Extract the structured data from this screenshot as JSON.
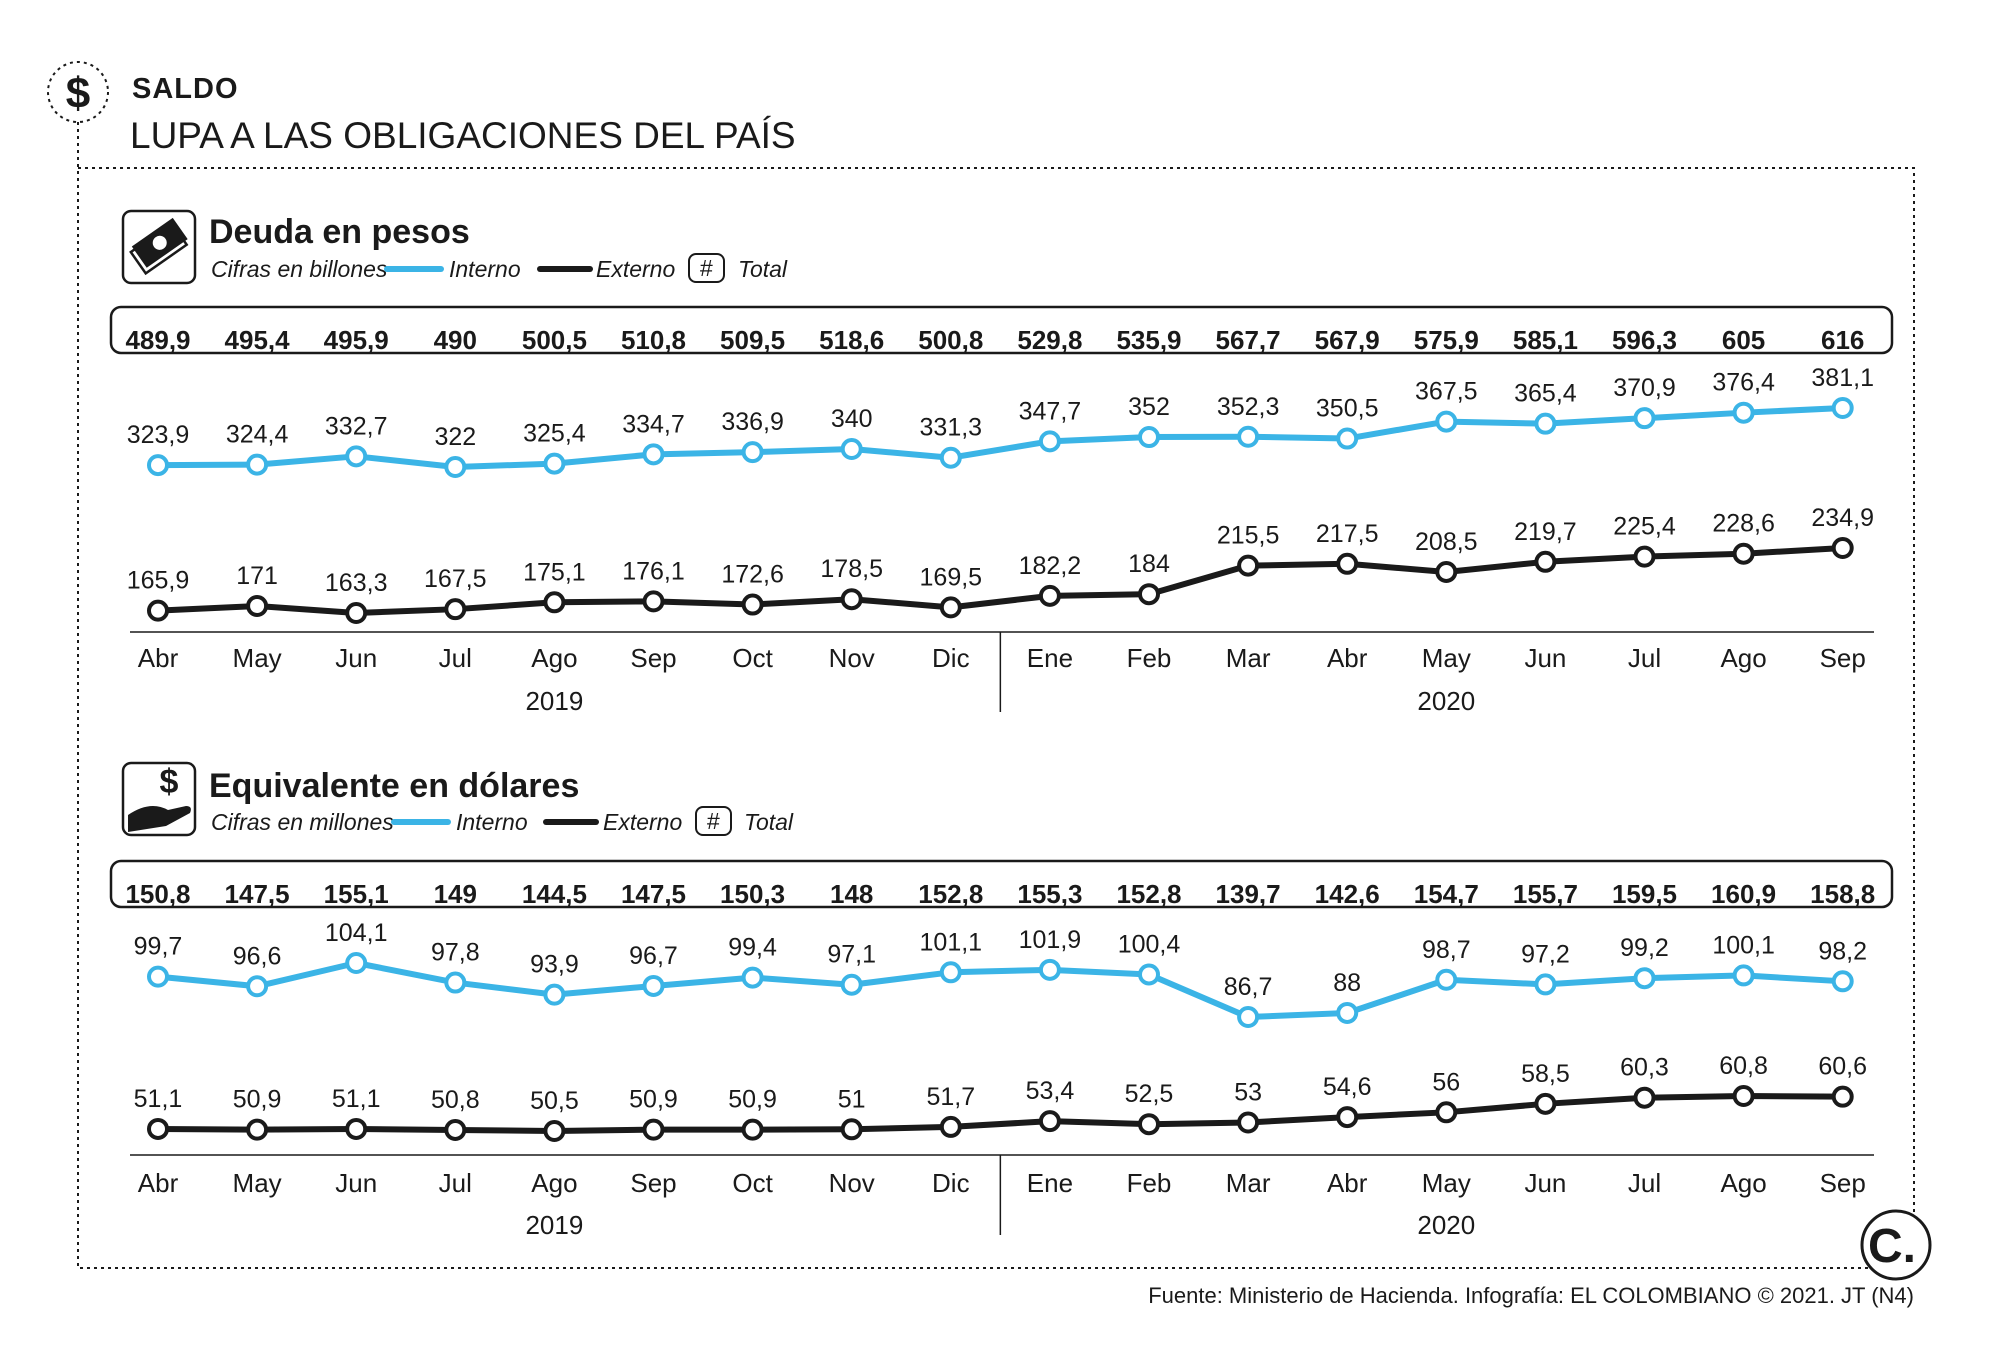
{
  "header": {
    "kicker": "SALDO",
    "subtitle": "LUPA A LAS OBLIGACIONES DEL PAÍS"
  },
  "source": "Fuente: Ministerio de Hacienda. Infografía: EL COLOMBIANO © 2021. JT (N4)",
  "logo_text": "C.",
  "colors": {
    "interno": "#3bb4e6",
    "externo": "#1a1a1a",
    "background": "#ffffff"
  },
  "icons": [
    "dollar-circle-icon",
    "banknotes-icon",
    "hand-dollar-icon",
    "el-colombiano-logo"
  ],
  "legend": {
    "interno": "Interno",
    "externo": "Externo",
    "total_symbol": "#",
    "total": "Total"
  },
  "chart_data": [
    {
      "type": "line",
      "title": "Deuda en pesos",
      "units": "Cifras en billones",
      "categories": [
        "Abr",
        "May",
        "Jun",
        "Jul",
        "Ago",
        "Sep",
        "Oct",
        "Nov",
        "Dic",
        "Ene",
        "Feb",
        "Mar",
        "Abr",
        "May",
        "Jun",
        "Jul",
        "Ago",
        "Sep"
      ],
      "years": [
        {
          "label": "2019",
          "from": 0,
          "to": 8
        },
        {
          "label": "2020",
          "from": 9,
          "to": 17
        }
      ],
      "totals": [
        "489,9",
        "495,4",
        "495,9",
        "490",
        "500,5",
        "510,8",
        "509,5",
        "518,6",
        "500,8",
        "529,8",
        "535,9",
        "567,7",
        "567,9",
        "575,9",
        "585,1",
        "596,3",
        "605",
        "616"
      ],
      "series": [
        {
          "name": "Interno",
          "values": [
            323.9,
            324.4,
            332.7,
            322,
            325.4,
            334.7,
            336.9,
            340,
            331.3,
            347.7,
            352,
            352.3,
            350.5,
            367.5,
            365.4,
            370.9,
            376.4,
            381.1
          ],
          "labels": [
            "323,9",
            "324,4",
            "332,7",
            "322",
            "325,4",
            "334,7",
            "336,9",
            "340",
            "331,3",
            "347,7",
            "352",
            "352,3",
            "350,5",
            "367,5",
            "365,4",
            "370,9",
            "376,4",
            "381,1"
          ]
        },
        {
          "name": "Externo",
          "values": [
            165.9,
            171,
            163.3,
            167.5,
            175.1,
            176.1,
            172.6,
            178.5,
            169.5,
            182.2,
            184,
            215.5,
            217.5,
            208.5,
            219.7,
            225.4,
            228.6,
            234.9
          ],
          "labels": [
            "165,9",
            "171",
            "163,3",
            "167,5",
            "175,1",
            "176,1",
            "172,6",
            "178,5",
            "169,5",
            "182,2",
            "184",
            "215,5",
            "217,5",
            "208,5",
            "219,7",
            "225,4",
            "228,6",
            "234,9"
          ]
        }
      ]
    },
    {
      "type": "line",
      "title": "Equivalente en dólares",
      "units": "Cifras en millones",
      "categories": [
        "Abr",
        "May",
        "Jun",
        "Jul",
        "Ago",
        "Sep",
        "Oct",
        "Nov",
        "Dic",
        "Ene",
        "Feb",
        "Mar",
        "Abr",
        "May",
        "Jun",
        "Jul",
        "Ago",
        "Sep"
      ],
      "years": [
        {
          "label": "2019",
          "from": 0,
          "to": 8
        },
        {
          "label": "2020",
          "from": 9,
          "to": 17
        }
      ],
      "totals": [
        "150,8",
        "147,5",
        "155,1",
        "149",
        "144,5",
        "147,5",
        "150,3",
        "148",
        "152,8",
        "155,3",
        "152,8",
        "139,7",
        "142,6",
        "154,7",
        "155,7",
        "159,5",
        "160,9",
        "158,8"
      ],
      "series": [
        {
          "name": "Interno",
          "values": [
            99.7,
            96.6,
            104.1,
            97.8,
            93.9,
            96.7,
            99.4,
            97.1,
            101.1,
            101.9,
            100.4,
            86.7,
            88,
            98.7,
            97.2,
            99.2,
            100.1,
            98.2
          ],
          "labels": [
            "99,7",
            "96,6",
            "104,1",
            "97,8",
            "93,9",
            "96,7",
            "99,4",
            "97,1",
            "101,1",
            "101,9",
            "100,4",
            "86,7",
            "88",
            "98,7",
            "97,2",
            "99,2",
            "100,1",
            "98,2"
          ]
        },
        {
          "name": "Externo",
          "values": [
            51.1,
            50.9,
            51.1,
            50.8,
            50.5,
            50.9,
            50.9,
            51,
            51.7,
            53.4,
            52.5,
            53,
            54.6,
            56,
            58.5,
            60.3,
            60.8,
            60.6
          ],
          "labels": [
            "51,1",
            "50,9",
            "51,1",
            "50,8",
            "50,5",
            "50,9",
            "50,9",
            "51",
            "51,7",
            "53,4",
            "52,5",
            "53",
            "54,6",
            "56",
            "58,5",
            "60,3",
            "60,8",
            "60,6"
          ]
        }
      ]
    }
  ]
}
